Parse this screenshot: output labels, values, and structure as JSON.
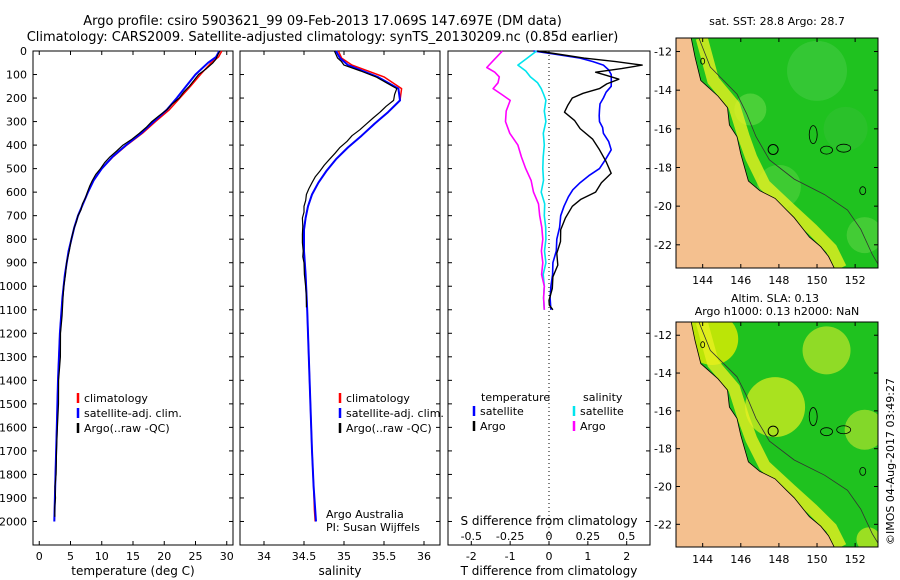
{
  "header": {
    "line1": "Argo profile: csiro 5903621_99 09-Feb-2013 17.069S 147.697E (DM data)",
    "line2": "Climatology: CARS2009. Satellite-adjusted climatology: synTS_20130209.nc (0.85d earlier)"
  },
  "side_stamp": "©IMOS 04-Aug-2017 03:49:27",
  "colors": {
    "climatology": "#ff0000",
    "satellite": "#0000ff",
    "argo": "#000000",
    "salinity_satellite": "#00e5ee",
    "salinity_argo": "#ff00ff",
    "land": "#f4c08f",
    "ocean_low": "#1fc21f",
    "ocean_high": "#f0f000"
  },
  "chart_data": [
    {
      "type": "line",
      "id": "temperature",
      "xlabel": "temperature (deg C)",
      "ylabel": "",
      "xlim": [
        -1,
        31
      ],
      "ylim": [
        2100,
        0
      ],
      "xticks": [
        0,
        5,
        10,
        15,
        20,
        25,
        30
      ],
      "yticks": [
        0,
        100,
        200,
        300,
        400,
        500,
        600,
        700,
        800,
        900,
        1000,
        1100,
        1200,
        1300,
        1400,
        1500,
        1600,
        1700,
        1800,
        1900,
        2000
      ],
      "legend": [
        "climatology",
        "satellite-adj. clim.",
        "Argo(..raw -QC)"
      ],
      "series": [
        {
          "name": "climatology",
          "x": [
            29.2,
            28.7,
            27.5,
            25.8,
            24.2,
            22.5,
            20.8,
            18.6,
            16.5,
            14.0,
            11.8,
            10.0,
            8.7,
            7.8,
            7.0,
            6.2,
            5.6,
            4.7,
            4.1,
            3.7,
            3.3,
            3.0,
            2.8,
            2.6,
            2.5,
            2.4
          ],
          "y": [
            0,
            25,
            50,
            100,
            150,
            200,
            250,
            300,
            350,
            400,
            450,
            500,
            550,
            600,
            650,
            700,
            750,
            850,
            950,
            1050,
            1200,
            1400,
            1600,
            1800,
            1900,
            2000
          ]
        },
        {
          "name": "satellite-adj. clim.",
          "x": [
            28.8,
            28.3,
            27.0,
            25.0,
            23.5,
            22.0,
            20.4,
            18.3,
            16.3,
            13.9,
            11.7,
            10.0,
            8.7,
            7.8,
            7.0,
            6.2,
            5.6,
            4.7,
            4.1,
            3.7,
            3.3,
            3.0,
            2.8,
            2.6,
            2.5,
            2.4
          ],
          "y": [
            0,
            25,
            50,
            100,
            150,
            200,
            250,
            300,
            350,
            400,
            450,
            500,
            550,
            600,
            650,
            700,
            750,
            850,
            950,
            1050,
            1200,
            1400,
            1600,
            1800,
            1900,
            2000
          ]
        },
        {
          "name": "Argo(..raw -QC)",
          "x": [
            28.9,
            28.5,
            27.8,
            25.5,
            24.0,
            22.4,
            20.4,
            18.0,
            16.0,
            13.4,
            11.3,
            9.8,
            8.5,
            7.7,
            6.9,
            6.2,
            5.6,
            4.8,
            4.2,
            3.8,
            3.4,
            3.1,
            2.9,
            2.7,
            2.6,
            2.5
          ],
          "y": [
            0,
            20,
            50,
            100,
            150,
            200,
            250,
            300,
            350,
            400,
            450,
            500,
            550,
            600,
            650,
            700,
            750,
            850,
            950,
            1050,
            1200,
            1400,
            1600,
            1800,
            1900,
            1980
          ]
        }
      ]
    },
    {
      "type": "line",
      "id": "salinity",
      "xlabel": "salinity",
      "xlim": [
        33.7,
        36.2
      ],
      "ylim": [
        2100,
        0
      ],
      "xticks": [
        34,
        34.5,
        35,
        35.5,
        36
      ],
      "legend": [
        "climatology",
        "satellite-adj. clim.",
        "Argo(..raw -QC)"
      ],
      "annotation": [
        "Argo Australia",
        "PI: Susan Wijffels"
      ],
      "series": [
        {
          "name": "climatology",
          "x": [
            34.93,
            34.97,
            35.1,
            35.5,
            35.72,
            35.7,
            35.55,
            35.38,
            35.22,
            35.05,
            34.9,
            34.78,
            34.68,
            34.6,
            34.55,
            34.52,
            34.5,
            34.5,
            34.52,
            34.54,
            34.56,
            34.58,
            34.6,
            34.62,
            34.63,
            34.64
          ],
          "y": [
            0,
            30,
            60,
            110,
            160,
            210,
            260,
            310,
            360,
            410,
            460,
            510,
            560,
            610,
            660,
            710,
            760,
            850,
            950,
            1100,
            1300,
            1500,
            1700,
            1850,
            1950,
            2000
          ]
        },
        {
          "name": "satellite-adj. clim.",
          "x": [
            34.9,
            34.95,
            35.05,
            35.42,
            35.68,
            35.7,
            35.55,
            35.38,
            35.22,
            35.05,
            34.9,
            34.78,
            34.68,
            34.6,
            34.55,
            34.52,
            34.5,
            34.5,
            34.52,
            34.54,
            34.56,
            34.58,
            34.6,
            34.62,
            34.64,
            34.65
          ],
          "y": [
            0,
            30,
            60,
            110,
            160,
            210,
            260,
            310,
            360,
            410,
            460,
            510,
            560,
            610,
            660,
            710,
            760,
            850,
            950,
            1100,
            1300,
            1500,
            1700,
            1850,
            1950,
            2000
          ]
        },
        {
          "name": "Argo(..raw -QC)",
          "x": [
            34.88,
            34.92,
            35.0,
            35.4,
            35.66,
            35.62,
            35.45,
            35.28,
            35.1,
            34.95,
            34.82,
            34.7,
            34.6,
            34.53,
            34.5,
            34.48,
            34.48,
            34.49,
            34.5,
            34.52,
            34.53
          ],
          "y": [
            0,
            30,
            60,
            110,
            160,
            210,
            260,
            310,
            360,
            410,
            460,
            510,
            560,
            610,
            660,
            710,
            780,
            850,
            900,
            1000,
            1090
          ]
        }
      ]
    },
    {
      "type": "line",
      "id": "difference",
      "xlabel": "T difference from climatology",
      "xlabel_top": "S difference from climatology",
      "xlim": [
        -2.6,
        2.6
      ],
      "ylim": [
        2100,
        0
      ],
      "xticks": [
        -2,
        -1,
        0,
        1,
        2
      ],
      "xticks_top": [
        "-0.5",
        "-0.25",
        "0",
        "0.25",
        "0.5"
      ],
      "legend_titles": [
        "temperature",
        "salinity"
      ],
      "legend": [
        "satellite",
        "Argo",
        "satellite",
        "Argo"
      ],
      "series": [
        {
          "name": "T satellite",
          "x": [
            -0.4,
            0.8,
            1.4,
            1.6,
            1.6,
            1.4,
            1.3,
            1.3,
            1.4,
            1.6,
            1.3,
            0.8,
            0.5,
            0.3,
            0.2,
            0.1,
            0.05,
            0.05
          ],
          "y": [
            0,
            30,
            60,
            100,
            150,
            200,
            250,
            300,
            350,
            420,
            500,
            560,
            620,
            700,
            800,
            900,
            1000,
            1100
          ]
        },
        {
          "name": "T Argo",
          "x": [
            -0.3,
            0.9,
            2.4,
            1.2,
            1.8,
            1.3,
            0.6,
            0.4,
            0.8,
            1.3,
            1.6,
            1.2,
            0.6,
            0.3,
            0.2,
            0.1,
            0.0,
            0.1
          ],
          "y": [
            0,
            30,
            60,
            90,
            120,
            160,
            200,
            260,
            330,
            420,
            520,
            600,
            660,
            760,
            860,
            960,
            1060,
            1100
          ]
        },
        {
          "name": "S satellite",
          "x": [
            -0.08,
            -0.2,
            -0.12,
            -0.05,
            -0.02,
            -0.02,
            -0.03,
            -0.04,
            -0.05,
            -0.03,
            -0.02,
            -0.02,
            -0.03,
            -0.03
          ],
          "y": [
            0,
            60,
            110,
            160,
            210,
            300,
            400,
            500,
            600,
            700,
            800,
            900,
            1000,
            1100
          ]
        },
        {
          "name": "S Argo",
          "x": [
            -0.3,
            -0.4,
            -0.32,
            -0.36,
            -0.25,
            -0.28,
            -0.2,
            -0.15,
            -0.1,
            -0.06,
            -0.04,
            -0.04,
            -0.03,
            -0.03
          ],
          "y": [
            0,
            70,
            110,
            160,
            210,
            300,
            400,
            500,
            600,
            700,
            800,
            900,
            1000,
            1100
          ]
        }
      ]
    },
    {
      "type": "heatmap",
      "id": "sst_map",
      "title": "sat. SST: 28.8 Argo: 28.7",
      "xticks": [
        144,
        146,
        148,
        150,
        152
      ],
      "yticks": [
        -12,
        -14,
        -16,
        -18,
        -20,
        -22
      ],
      "xlim": [
        142.6,
        153.2
      ],
      "ylim": [
        -23.2,
        -11.3
      ],
      "argo_location": [
        147.697,
        -17.069
      ]
    },
    {
      "type": "heatmap",
      "id": "sla_map",
      "title_line1": "Altim. SLA: 0.13",
      "title_line2": "Argo h1000: 0.13 h2000: NaN",
      "xticks": [
        144,
        146,
        148,
        150,
        152
      ],
      "yticks": [
        -12,
        -14,
        -16,
        -18,
        -20,
        -22
      ],
      "xlim": [
        142.6,
        153.2
      ],
      "ylim": [
        -23.2,
        -11.3
      ],
      "argo_location": [
        147.697,
        -17.069
      ]
    }
  ]
}
